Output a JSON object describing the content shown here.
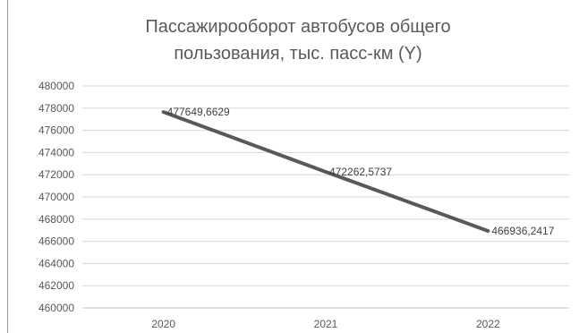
{
  "chart_data": {
    "type": "line",
    "title_lines": [
      "Пассажирооборот автобусов общего",
      "пользования, тыс. пасс-км (Y)"
    ],
    "categories": [
      "2020",
      "2021",
      "2022"
    ],
    "series": [
      {
        "values": [
          477649.6629,
          472262.5737,
          466936.2417
        ]
      }
    ],
    "data_labels": [
      "477649,6629",
      "472262,5737",
      "466936,2417"
    ],
    "ylim": [
      460000,
      480000
    ],
    "yticks": [
      480000,
      478000,
      476000,
      474000,
      472000,
      470000,
      468000,
      466000,
      464000,
      462000,
      460000
    ],
    "grid": true,
    "legend": "none",
    "colors": {
      "line": "#595959",
      "grid": "#d9d9d9",
      "axis": "#bfbfbf"
    }
  }
}
